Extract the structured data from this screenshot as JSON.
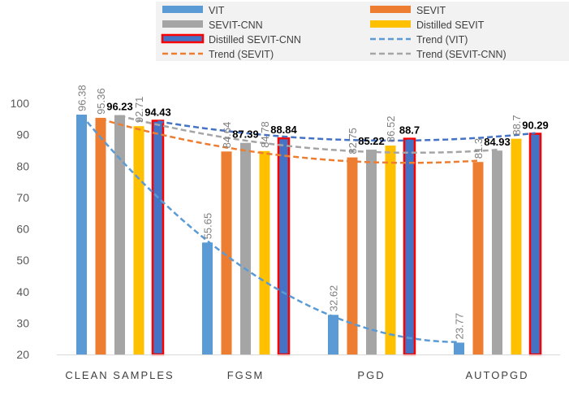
{
  "chart_data": {
    "type": "bar",
    "title": "",
    "xlabel": "",
    "ylabel": "",
    "ylim": [
      20,
      100
    ],
    "yticks": [
      20,
      30,
      40,
      50,
      60,
      70,
      80,
      90,
      100
    ],
    "categories": [
      "CLEAN SAMPLES",
      "FGSM",
      "PGD",
      "AUTOPGD"
    ],
    "series": [
      {
        "name": "VIT",
        "color": "#5B9BD5",
        "values": [
          96.38,
          55.65,
          32.62,
          23.77
        ],
        "labels": [
          "96.38",
          "55.65",
          "32.62",
          "23.77"
        ],
        "label_color": "#7F7F7F",
        "label_bold": false,
        "outline": ""
      },
      {
        "name": "SEVIT",
        "color": "#ED7D31",
        "values": [
          95.36,
          84.64,
          82.75,
          81.3
        ],
        "labels": [
          "95.36",
          "84.64",
          "82.75",
          "81.3"
        ],
        "label_color": "#7F7F7F",
        "label_bold": false,
        "outline": ""
      },
      {
        "name": "SEVIT-CNN",
        "color": "#A5A5A5",
        "values": [
          96.23,
          87.39,
          85.22,
          84.93
        ],
        "labels": [
          "96.23",
          "87.39",
          "85.22",
          "84.93"
        ],
        "label_color": "#000000",
        "label_bold": true,
        "outline": ""
      },
      {
        "name": "Distilled SEVIT",
        "color": "#FFC000",
        "values": [
          92.71,
          84.78,
          86.52,
          88.7
        ],
        "labels": [
          "92.71",
          "84.78",
          "86.52",
          "88.7"
        ],
        "label_color": "#7F7F7F",
        "label_bold": false,
        "outline": ""
      },
      {
        "name": "Distilled SEVIT-CNN",
        "color": "#4472C4",
        "values": [
          94.43,
          88.84,
          88.7,
          90.29
        ],
        "labels": [
          "94.43",
          "88.84",
          "88.7",
          "90.29"
        ],
        "label_color": "#000000",
        "label_bold": true,
        "outline": "#FF0000"
      }
    ],
    "trends": [
      {
        "name": "Trend (VIT)",
        "color": "#5B9BD5",
        "series_index": 0
      },
      {
        "name": "Trend (SEVIT)",
        "color": "#ED7D31",
        "series_index": 1
      },
      {
        "name": "Trend (SEVIT-CNN)",
        "color": "#A5A5A5",
        "series_index": 2
      },
      {
        "name": "Trend (Distilled SEVIT-CNN)",
        "color": "#4472C4",
        "series_index": 4,
        "in_legend": false
      }
    ],
    "legend": {
      "placement": "top",
      "entries": [
        "VIT",
        "SEVIT",
        "SEVIT-CNN",
        "Distilled SEVIT",
        "Distilled SEVIT-CNN",
        "Trend (VIT)",
        "Trend (SEVIT)",
        "Trend (SEVIT-CNN)"
      ]
    },
    "grid": false
  }
}
